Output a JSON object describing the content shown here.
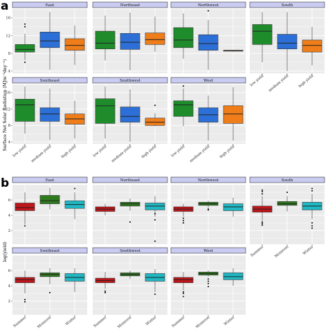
{
  "figure": {
    "panel_labels": [
      "a",
      "b"
    ],
    "colors": {
      "low yield": "#1e8c2b",
      "medium yield": "#2c6fd6",
      "high yield": "#ef7d1a",
      "Summer": "#c0161b",
      "Monsoon": "#2f7a1f",
      "Winter": "#1fb8c4",
      "strip_fill": "#c9cbf0",
      "panel_bg": "#ebebeb"
    }
  },
  "chart_data": [
    {
      "type": "box",
      "panel_label": "a",
      "ylabel": "Surface Net Solar Radiation (MJm⁻²day⁻¹)",
      "ylim": [
        3.5,
        18
      ],
      "yticks": [
        4,
        8,
        12,
        16
      ],
      "categories": [
        "low yield",
        "medium yield",
        "high yield"
      ],
      "facets": [
        {
          "name": "East",
          "boxes": [
            {
              "group": "low yield",
              "min": 6.5,
              "q1": 8.3,
              "median": 8.9,
              "q3": 10.0,
              "max": 12.4,
              "outliers": [
                6.0,
                14.0,
                14.6
              ]
            },
            {
              "group": "medium yield",
              "min": 4.3,
              "q1": 9.3,
              "median": 10.8,
              "q3": 12.8,
              "max": 17.3,
              "outliers": []
            },
            {
              "group": "high yield",
              "min": 5.4,
              "q1": 8.7,
              "median": 9.8,
              "q3": 11.3,
              "max": 14.3,
              "outliers": []
            }
          ]
        },
        {
          "name": "Northeast",
          "boxes": [
            {
              "group": "low yield",
              "min": 6.4,
              "q1": 9.0,
              "median": 10.3,
              "q3": 13.0,
              "max": 16.5,
              "outliers": []
            },
            {
              "group": "medium yield",
              "min": 4.2,
              "q1": 8.9,
              "median": 10.5,
              "q3": 12.5,
              "max": 17.2,
              "outliers": []
            },
            {
              "group": "high yield",
              "min": 8.4,
              "q1": 10.0,
              "median": 11.1,
              "q3": 12.6,
              "max": 16.3,
              "outliers": []
            }
          ]
        },
        {
          "name": "Northwest",
          "boxes": [
            {
              "group": "low yield",
              "min": 6.8,
              "q1": 9.3,
              "median": 11.0,
              "q3": 13.8,
              "max": 17.0,
              "outliers": []
            },
            {
              "group": "medium yield",
              "min": 4.3,
              "q1": 8.7,
              "median": 10.2,
              "q3": 12.2,
              "max": 15.5,
              "outliers": [
                17.6
              ]
            },
            {
              "group": "high yield",
              "min": 8.4,
              "q1": 8.5,
              "median": 8.6,
              "q3": 8.7,
              "max": 8.7,
              "outliers": []
            }
          ]
        },
        {
          "name": "South",
          "boxes": [
            {
              "group": "low yield",
              "min": 6.0,
              "q1": 10.0,
              "median": 13.0,
              "q3": 14.5,
              "max": 17.3,
              "outliers": []
            },
            {
              "group": "medium yield",
              "min": 4.0,
              "q1": 9.0,
              "median": 10.3,
              "q3": 12.3,
              "max": 17.3,
              "outliers": []
            },
            {
              "group": "high yield",
              "min": 5.3,
              "q1": 8.3,
              "median": 9.8,
              "q3": 11.0,
              "max": 14.0,
              "outliers": []
            }
          ]
        },
        {
          "name": "Southeast",
          "boxes": [
            {
              "group": "low yield",
              "min": 6.0,
              "q1": 9.0,
              "median": 13.0,
              "q3": 14.4,
              "max": 17.5,
              "outliers": []
            },
            {
              "group": "medium yield",
              "min": 4.5,
              "q1": 9.0,
              "median": 10.8,
              "q3": 12.3,
              "max": 17.0,
              "outliers": []
            },
            {
              "group": "high yield",
              "min": 4.8,
              "q1": 8.3,
              "median": 9.6,
              "q3": 10.8,
              "max": 14.0,
              "outliers": []
            }
          ]
        },
        {
          "name": "Southwest",
          "boxes": [
            {
              "group": "low yield",
              "min": 4.8,
              "q1": 8.5,
              "median": 12.8,
              "q3": 14.5,
              "max": 17.5,
              "outliers": []
            },
            {
              "group": "medium yield",
              "min": 4.0,
              "q1": 8.8,
              "median": 10.2,
              "q3": 12.5,
              "max": 16.8,
              "outliers": []
            },
            {
              "group": "high yield",
              "min": 7.8,
              "q1": 8.0,
              "median": 8.8,
              "q3": 9.8,
              "max": 11.0,
              "outliers": [
                12.9
              ]
            }
          ]
        },
        {
          "name": "West",
          "boxes": [
            {
              "group": "low yield",
              "min": 7.8,
              "q1": 10.2,
              "median": 13.0,
              "q3": 14.0,
              "max": 17.0,
              "outliers": [
                17.6
              ]
            },
            {
              "group": "medium yield",
              "min": 4.3,
              "q1": 8.8,
              "median": 10.6,
              "q3": 12.3,
              "max": 15.3,
              "outliers": []
            },
            {
              "group": "high yield",
              "min": 4.3,
              "q1": 8.5,
              "median": 10.8,
              "q3": 12.8,
              "max": 17.3,
              "outliers": []
            }
          ]
        }
      ]
    },
    {
      "type": "box",
      "panel_label": "b",
      "ylabel": "log(yield)",
      "ylim": [
        0.2,
        8.0
      ],
      "yticks": [
        2,
        4,
        6
      ],
      "categories": [
        "Summer",
        "Monsoon",
        "Winter"
      ],
      "facets": [
        {
          "name": "East",
          "boxes": [
            {
              "group": "Summer",
              "min": 2.8,
              "q1": 4.6,
              "median": 5.0,
              "q3": 5.6,
              "max": 7.0,
              "outliers": [
                2.6
              ]
            },
            {
              "group": "Monsoon",
              "min": 4.8,
              "q1": 5.5,
              "median": 5.9,
              "q3": 6.6,
              "max": 7.6,
              "outliers": []
            },
            {
              "group": "Winter",
              "min": 3.5,
              "q1": 4.9,
              "median": 5.4,
              "q3": 5.9,
              "max": 7.0,
              "outliers": [
                7.5
              ]
            }
          ]
        },
        {
          "name": "Northeast",
          "boxes": [
            {
              "group": "Summer",
              "min": 4.0,
              "q1": 4.5,
              "median": 4.8,
              "q3": 5.1,
              "max": 5.5,
              "outliers": []
            },
            {
              "group": "Monsoon",
              "min": 4.6,
              "q1": 5.2,
              "median": 5.5,
              "q3": 5.7,
              "max": 6.2,
              "outliers": [
                3.1
              ]
            },
            {
              "group": "Winter",
              "min": 3.8,
              "q1": 4.7,
              "median": 5.2,
              "q3": 5.6,
              "max": 6.5,
              "outliers": [
                4.2,
                3.4,
                0.6
              ]
            }
          ]
        },
        {
          "name": "Northwest",
          "boxes": [
            {
              "group": "Summer",
              "min": 3.8,
              "q1": 4.5,
              "median": 4.8,
              "q3": 5.1,
              "max": 5.5,
              "outliers": [
                3.6,
                3.3,
                3.0
              ]
            },
            {
              "group": "Monsoon",
              "min": 5.0,
              "q1": 5.3,
              "median": 5.5,
              "q3": 5.7,
              "max": 5.9,
              "outliers": [
                4.8,
                4.7
              ]
            },
            {
              "group": "Winter",
              "min": 3.8,
              "q1": 4.6,
              "median": 5.1,
              "q3": 5.5,
              "max": 6.3,
              "outliers": []
            }
          ]
        },
        {
          "name": "South",
          "boxes": [
            {
              "group": "Summer",
              "min": 3.3,
              "q1": 4.4,
              "median": 4.8,
              "q3": 5.2,
              "max": 6.5,
              "outliers": [
                3.1,
                2.9,
                2.7,
                6.8,
                7.1,
                7.3
              ]
            },
            {
              "group": "Monsoon",
              "min": 4.5,
              "q1": 5.3,
              "median": 5.5,
              "q3": 5.8,
              "max": 6.5,
              "outliers": [
                7.0
              ]
            },
            {
              "group": "Winter",
              "min": 3.5,
              "q1": 4.7,
              "median": 5.2,
              "q3": 5.7,
              "max": 6.8,
              "outliers": [
                3.0,
                2.6,
                2.3,
                7.2,
                7.5
              ]
            }
          ]
        },
        {
          "name": "Southeast",
          "boxes": [
            {
              "group": "Summer",
              "min": 3.0,
              "q1": 4.4,
              "median": 4.8,
              "q3": 5.1,
              "max": 6.0,
              "outliers": [
                2.2,
                1.9
              ]
            },
            {
              "group": "Monsoon",
              "min": 4.2,
              "q1": 5.2,
              "median": 5.5,
              "q3": 5.7,
              "max": 6.3,
              "outliers": [
                3.1
              ]
            },
            {
              "group": "Winter",
              "min": 3.2,
              "q1": 4.6,
              "median": 5.1,
              "q3": 5.6,
              "max": 6.3,
              "outliers": []
            }
          ]
        },
        {
          "name": "Southwest",
          "boxes": [
            {
              "group": "Summer",
              "min": 3.6,
              "q1": 4.4,
              "median": 4.7,
              "q3": 5.0,
              "max": 5.8,
              "outliers": [
                3.3,
                3.1
              ]
            },
            {
              "group": "Monsoon",
              "min": 4.9,
              "q1": 5.3,
              "median": 5.5,
              "q3": 5.7,
              "max": 6.0,
              "outliers": []
            },
            {
              "group": "Winter",
              "min": 3.2,
              "q1": 4.6,
              "median": 5.1,
              "q3": 5.6,
              "max": 6.2,
              "outliers": [
                2.9
              ]
            }
          ]
        },
        {
          "name": "West",
          "boxes": [
            {
              "group": "Summer",
              "min": 3.4,
              "q1": 4.4,
              "median": 4.8,
              "q3": 5.1,
              "max": 5.8,
              "outliers": [
                3.2,
                3.0,
                2.6
              ]
            },
            {
              "group": "Monsoon",
              "min": 5.2,
              "q1": 5.4,
              "median": 5.6,
              "q3": 5.8,
              "max": 6.0,
              "outliers": [
                4.9,
                4.6,
                4.3,
                3.9
              ]
            },
            {
              "group": "Winter",
              "min": 4.0,
              "q1": 4.8,
              "median": 5.2,
              "q3": 5.7,
              "max": 6.3,
              "outliers": []
            }
          ]
        }
      ]
    }
  ]
}
